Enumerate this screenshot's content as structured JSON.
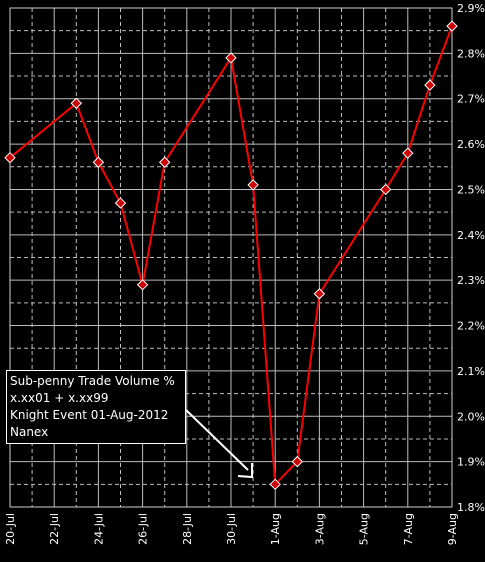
{
  "chart_data": {
    "type": "line",
    "title": "",
    "xlabel": "",
    "ylabel": "",
    "x_labels": [
      "20-Jul",
      "22-Jul",
      "24-Jul",
      "26-Jul",
      "28-Jul",
      "30-Jul",
      "1-Aug",
      "3-Aug",
      "5-Aug",
      "7-Aug",
      "9-Aug"
    ],
    "yticks": [
      "1.8%",
      "1.9%",
      "2.0%",
      "2.1%",
      "2.2%",
      "2.3%",
      "2.4%",
      "2.5%",
      "2.6%",
      "2.7%",
      "2.8%",
      "2.9%"
    ],
    "ylim": [
      1.8,
      2.9
    ],
    "grid": true,
    "series": [
      {
        "color": "#ff0000",
        "marker_color": "#cc0000",
        "points": [
          {
            "x": "2012-07-20",
            "y": 2.57
          },
          {
            "x": "2012-07-23",
            "y": 2.69
          },
          {
            "x": "2012-07-24",
            "y": 2.56
          },
          {
            "x": "2012-07-25",
            "y": 2.47
          },
          {
            "x": "2012-07-26",
            "y": 2.29
          },
          {
            "x": "2012-07-27",
            "y": 2.56
          },
          {
            "x": "2012-07-30",
            "y": 2.79
          },
          {
            "x": "2012-07-31",
            "y": 2.51
          },
          {
            "x": "2012-08-01",
            "y": 1.85
          },
          {
            "x": "2012-08-02",
            "y": 1.9
          },
          {
            "x": "2012-08-03",
            "y": 2.27
          },
          {
            "x": "2012-08-06",
            "y": 2.5
          },
          {
            "x": "2012-08-07",
            "y": 2.58
          },
          {
            "x": "2012-08-08",
            "y": 2.73
          },
          {
            "x": "2012-08-09",
            "y": 2.86
          }
        ]
      }
    ],
    "annotation": {
      "lines": [
        "Sub-penny Trade Volume %",
        "x.xx01 + x.xx99",
        "Knight Event 01-Aug-2012",
        "Nanex"
      ]
    }
  }
}
